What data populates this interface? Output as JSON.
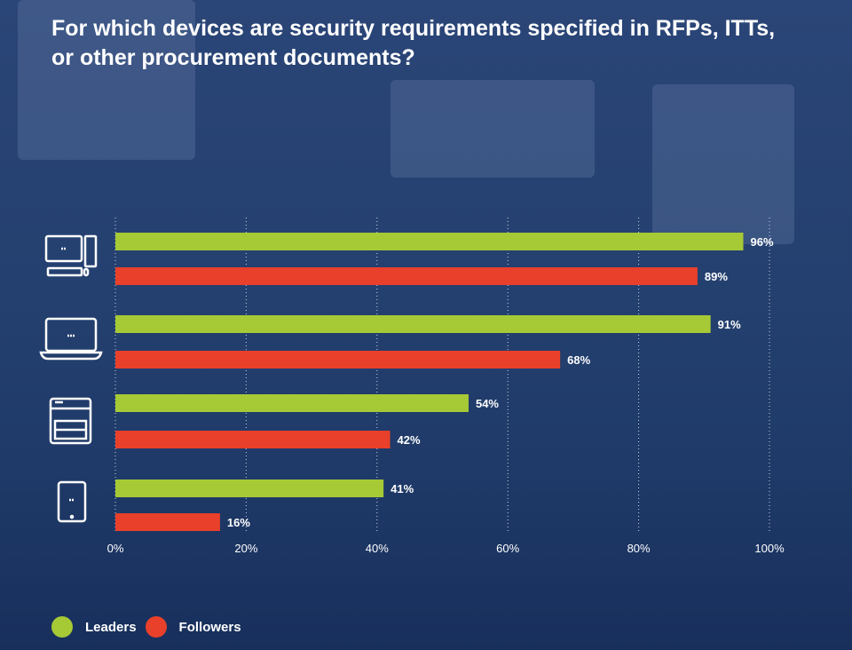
{
  "title": "For which devices are security requirements specified in RFPs, ITTs, or other procurement documents?",
  "chart_data": {
    "type": "bar",
    "orientation": "horizontal",
    "categories": [
      "desktop-computer-icon",
      "laptop-icon",
      "printer-icon",
      "tablet-icon"
    ],
    "series": [
      {
        "name": "Leaders",
        "values": [
          96,
          91,
          54,
          41
        ],
        "color": "#a6c936"
      },
      {
        "name": "Followers",
        "values": [
          89,
          68,
          42,
          16
        ],
        "color": "#e8402a"
      }
    ],
    "data_labels": [
      [
        "96%",
        "91%",
        "54%",
        "41%"
      ],
      [
        "89%",
        "68%",
        "42%",
        "16%"
      ]
    ],
    "xlim": [
      0,
      100
    ],
    "xticks": [
      "0%",
      "20%",
      "40%",
      "60%",
      "80%",
      "100%"
    ],
    "grid": "vertical dotted",
    "legend": "bottom-left"
  }
}
